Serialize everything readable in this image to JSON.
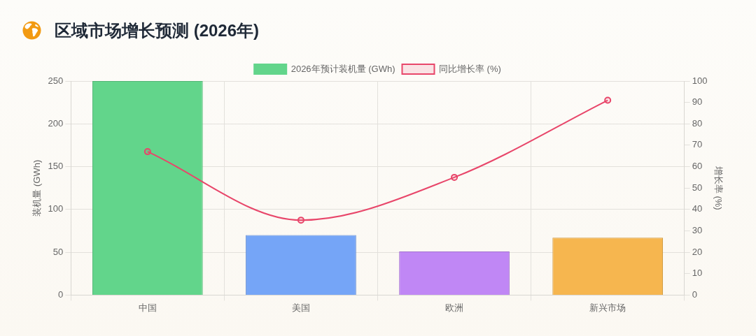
{
  "chart_data": {
    "type": "bar",
    "title": "区域市场增长预测 (2026年)",
    "categories": [
      "中国",
      "美国",
      "欧洲",
      "新兴市场"
    ],
    "series": [
      {
        "name": "2026年预计装机量 (GWh)",
        "type": "bar",
        "color": "#62d58b",
        "colors": [
          "#62d58b",
          "#75a5f7",
          "#c087f5",
          "#f6b64f"
        ],
        "values": [
          250,
          70,
          51,
          67
        ]
      },
      {
        "name": "同比增长率 (%)",
        "type": "line",
        "axis": "y2",
        "color": "#e8466a",
        "values": [
          67,
          35,
          55,
          91
        ]
      }
    ],
    "ylabel": "装机量 (GWh)",
    "y2label": "增长率 (%)",
    "ylim": [
      0,
      250
    ],
    "yticks": [
      0,
      50,
      100,
      150,
      200,
      250
    ],
    "y2lim": [
      0,
      100
    ],
    "y2ticks": [
      0,
      10,
      20,
      30,
      40,
      50,
      60,
      70,
      80,
      90,
      100
    ],
    "grid": true,
    "legend": "top",
    "marker": "circle",
    "line_style": "solid"
  }
}
